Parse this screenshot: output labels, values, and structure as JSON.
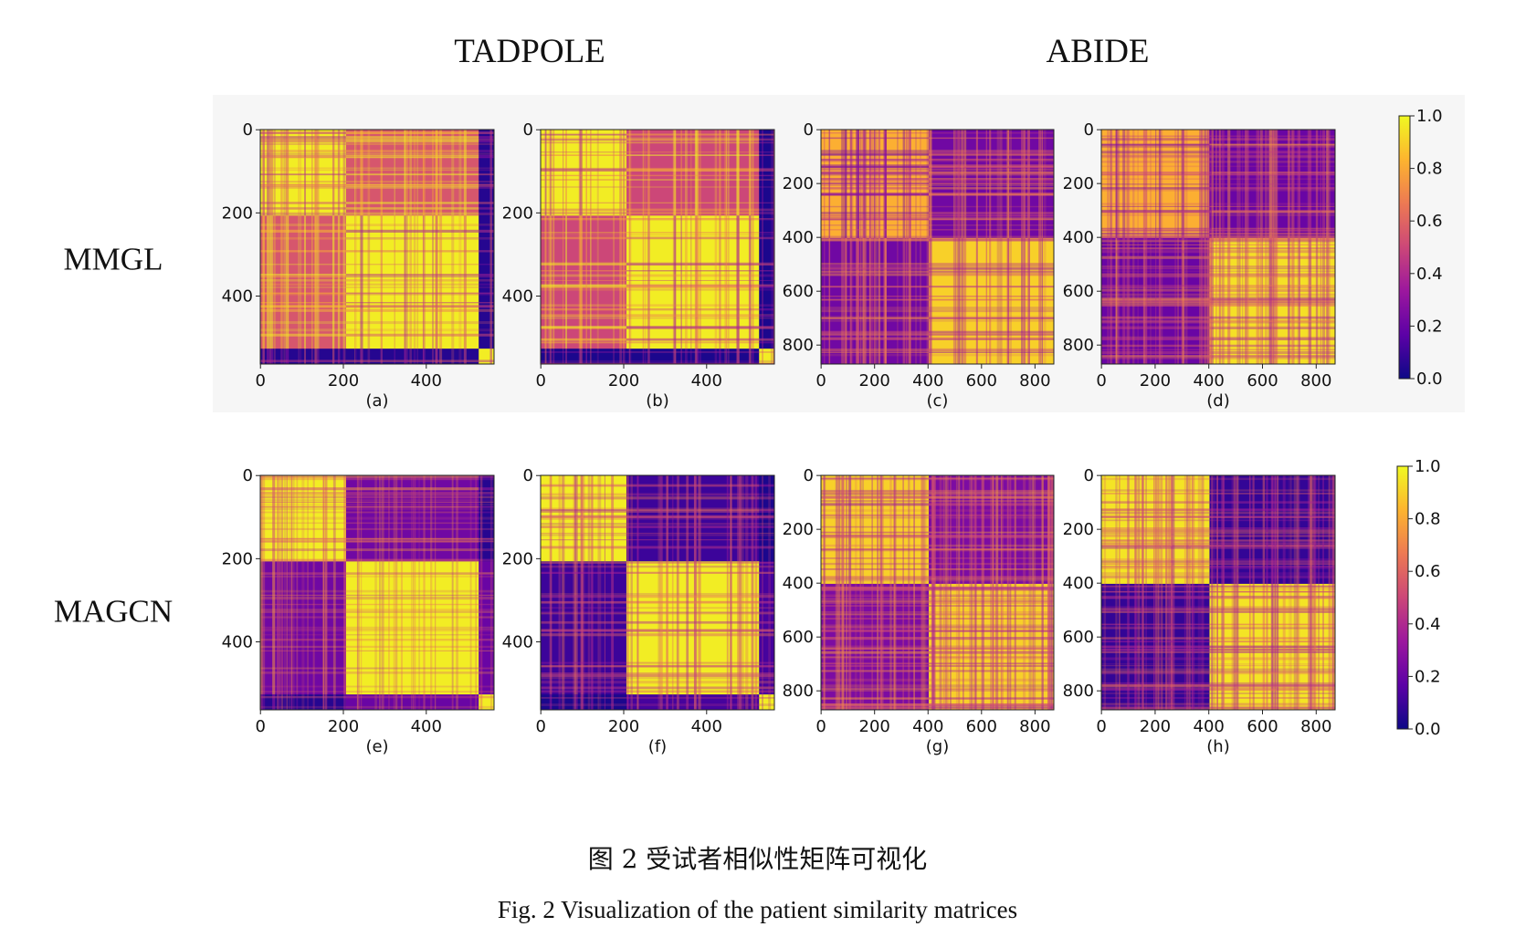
{
  "column_titles": [
    "TADPOLE",
    "ABIDE"
  ],
  "row_titles": [
    "MMGL",
    "MAGCN"
  ],
  "caption_cn": "图 2    受试者相似性矩阵可视化",
  "caption_en": "Fig. 2    Visualization of the patient similarity matrices",
  "colormap": [
    "#0d0887",
    "#5c01a6",
    "#9c179e",
    "#cc4778",
    "#ed7953",
    "#fdb42f",
    "#f0f921"
  ],
  "chart_data": [
    {
      "type": "heatmap",
      "label": "(a)",
      "dataset": "TADPOLE",
      "method": "MMGL",
      "size": 564,
      "xticks": [
        0,
        200,
        400
      ],
      "yticks": [
        0,
        200,
        400
      ],
      "groups": [
        0,
        207,
        527,
        564
      ],
      "block_values": [
        [
          0.97,
          0.55,
          0.05
        ],
        [
          0.55,
          0.97,
          0.05
        ],
        [
          0.05,
          0.05,
          0.97
        ]
      ]
    },
    {
      "type": "heatmap",
      "label": "(b)",
      "dataset": "TADPOLE",
      "method": "MMGL",
      "size": 564,
      "xticks": [
        0,
        200,
        400
      ],
      "yticks": [
        0,
        200,
        400
      ],
      "groups": [
        0,
        207,
        527,
        564
      ],
      "block_values": [
        [
          0.97,
          0.5,
          0.03
        ],
        [
          0.5,
          0.97,
          0.03
        ],
        [
          0.03,
          0.03,
          0.97
        ]
      ]
    },
    {
      "type": "heatmap",
      "label": "(c)",
      "dataset": "ABIDE",
      "method": "MMGL",
      "size": 871,
      "xticks": [
        0,
        200,
        400,
        600,
        800
      ],
      "yticks": [
        0,
        200,
        400,
        600,
        800
      ],
      "groups": [
        0,
        403,
        871
      ],
      "block_values": [
        [
          0.82,
          0.22
        ],
        [
          0.22,
          0.9
        ]
      ]
    },
    {
      "type": "heatmap",
      "label": "(d)",
      "dataset": "ABIDE",
      "method": "MMGL",
      "size": 871,
      "xticks": [
        0,
        200,
        400,
        600,
        800
      ],
      "yticks": [
        0,
        200,
        400,
        600,
        800
      ],
      "groups": [
        0,
        403,
        871
      ],
      "block_values": [
        [
          0.82,
          0.2
        ],
        [
          0.2,
          0.94
        ]
      ]
    },
    {
      "type": "heatmap",
      "label": "(e)",
      "dataset": "TADPOLE",
      "method": "MAGCN",
      "size": 564,
      "xticks": [
        0,
        200,
        400
      ],
      "yticks": [
        0,
        200,
        400
      ],
      "groups": [
        0,
        207,
        527,
        564
      ],
      "block_values": [
        [
          0.97,
          0.22,
          0.05
        ],
        [
          0.22,
          0.97,
          0.2
        ],
        [
          0.05,
          0.2,
          0.97
        ]
      ]
    },
    {
      "type": "heatmap",
      "label": "(f)",
      "dataset": "TADPOLE",
      "method": "MAGCN",
      "size": 564,
      "xticks": [
        0,
        200,
        400
      ],
      "yticks": [
        0,
        200,
        400
      ],
      "groups": [
        0,
        207,
        527,
        564
      ],
      "block_values": [
        [
          0.97,
          0.1,
          0.03
        ],
        [
          0.1,
          0.97,
          0.12
        ],
        [
          0.03,
          0.12,
          0.97
        ]
      ]
    },
    {
      "type": "heatmap",
      "label": "(g)",
      "dataset": "ABIDE",
      "method": "MAGCN",
      "size": 871,
      "xticks": [
        0,
        200,
        400,
        600,
        800
      ],
      "yticks": [
        0,
        200,
        400,
        600,
        800
      ],
      "groups": [
        0,
        403,
        871
      ],
      "block_values": [
        [
          0.9,
          0.25
        ],
        [
          0.25,
          0.9
        ]
      ]
    },
    {
      "type": "heatmap",
      "label": "(h)",
      "dataset": "ABIDE",
      "method": "MAGCN",
      "size": 871,
      "xticks": [
        0,
        200,
        400,
        600,
        800
      ],
      "yticks": [
        0,
        200,
        400,
        600,
        800
      ],
      "groups": [
        0,
        403,
        871
      ],
      "block_values": [
        [
          0.95,
          0.08
        ],
        [
          0.08,
          0.95
        ]
      ]
    }
  ],
  "colorbars": [
    {
      "min": 0.0,
      "max": 1.0,
      "ticks": [
        "0.0",
        "0.2",
        "0.4",
        "0.6",
        "0.8",
        "1.0"
      ]
    },
    {
      "min": 0.0,
      "max": 1.0,
      "ticks": [
        "0.0",
        "0.2",
        "0.4",
        "0.6",
        "0.8",
        "1.0"
      ]
    }
  ]
}
